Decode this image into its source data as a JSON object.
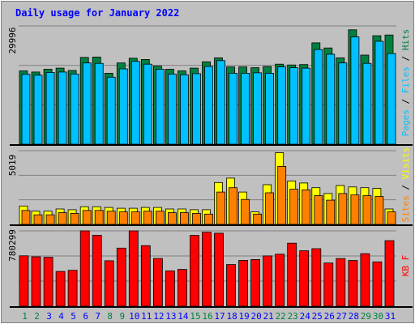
{
  "chart_data": {
    "type": "bar",
    "title": "Daily usage for January 2022",
    "categories": [
      "1",
      "2",
      "3",
      "4",
      "5",
      "6",
      "7",
      "8",
      "9",
      "10",
      "11",
      "12",
      "13",
      "14",
      "15",
      "16",
      "17",
      "18",
      "19",
      "20",
      "21",
      "22",
      "23",
      "24",
      "25",
      "26",
      "27",
      "28",
      "29",
      "30",
      "31"
    ],
    "weekend_days": [
      "1",
      "2",
      "8",
      "9",
      "15",
      "16",
      "22",
      "23",
      "29",
      "30"
    ],
    "panels": [
      {
        "id": "pages-files-hits",
        "max_label": "29996",
        "ymax": 29996,
        "ylabel_parts": [
          {
            "text": "Pages",
            "series": "Pages"
          },
          {
            "text": " / ",
            "series": null
          },
          {
            "text": "Files",
            "series": "Files"
          },
          {
            "text": " / ",
            "series": null
          },
          {
            "text": "Hits",
            "series": "Hits"
          }
        ],
        "series": [
          {
            "name": "Hits",
            "color": "#008040",
            "values": [
              18600,
              18300,
              19000,
              19300,
              18700,
              22000,
              22100,
              18000,
              20600,
              21800,
              21500,
              19800,
              19000,
              18600,
              19300,
              20900,
              21900,
              19600,
              19600,
              19400,
              19700,
              20300,
              20100,
              20200,
              25700,
              24400,
              21900,
              29000,
              22600,
              27500,
              27700
            ]
          },
          {
            "name": "Files",
            "color": "#00c0ff",
            "values": [
              17700,
              17500,
              18200,
              18300,
              17800,
              20600,
              20500,
              17000,
              19100,
              21000,
              20300,
              19000,
              17800,
              17600,
              17900,
              19700,
              21200,
              18000,
              18000,
              18100,
              18000,
              19600,
              19400,
              19300,
              24000,
              22800,
              20600,
              27200,
              20500,
              26100,
              23000
            ]
          },
          {
            "name": "Pages",
            "color": "#00c0ff",
            "values": []
          }
        ]
      },
      {
        "id": "visits-sites",
        "max_label": "5019",
        "ymax": 5019,
        "ylabel_parts": [
          {
            "text": "Sites",
            "series": "Sites"
          },
          {
            "text": " / ",
            "series": null
          },
          {
            "text": "Visits",
            "series": "Visits"
          }
        ],
        "series": [
          {
            "name": "Visits",
            "color": "#ffff00",
            "values": [
              1250,
              900,
              900,
              1050,
              1000,
              1200,
              1200,
              1150,
              1100,
              1100,
              1150,
              1150,
              1050,
              1050,
              1000,
              1000,
              2850,
              3150,
              2200,
              850,
              2700,
              4880,
              2950,
              2820,
              2500,
              2100,
              2650,
              2550,
              2500,
              2450,
              1050
            ]
          },
          {
            "name": "Sites",
            "color": "#ff8000",
            "values": [
              950,
              650,
              650,
              800,
              750,
              950,
              950,
              900,
              850,
              850,
              900,
              900,
              800,
              800,
              750,
              700,
              2200,
              2500,
              1700,
              700,
              2150,
              3950,
              2400,
              2350,
              1950,
              1650,
              2100,
              2000,
              1950,
              1900,
              850
            ]
          }
        ]
      },
      {
        "id": "kbf",
        "max_label": "780299",
        "ymax": 780299,
        "ylabel_parts": [
          {
            "text": "KB F",
            "series": "KB F"
          }
        ],
        "series": [
          {
            "name": "KB F",
            "color": "#ff0000",
            "values": [
              522000,
              512000,
              507000,
              360000,
              372000,
              780299,
              734000,
              471000,
              602000,
              780299,
              627000,
              494000,
              366000,
              381000,
              733000,
              766000,
              756000,
              431000,
              474000,
              483000,
              521000,
              539000,
              653000,
              574000,
              596000,
              447000,
              493000,
              473000,
              544000,
              459000,
              679000
            ]
          }
        ]
      }
    ],
    "colors": {
      "background": "#c0c0c0",
      "title": "#0000ff",
      "weekday_label": "#0000ff",
      "weekend_label": "#008040",
      "separator": "#000000",
      "axis_text": "#000000",
      "gridline": "#808080",
      "Hits": "#008040",
      "Files": "#00c0ff",
      "Pages": "#00c0ff",
      "Visits": "#ffff00",
      "Sites": "#ff8000",
      "KB F": "#ff0000"
    }
  }
}
